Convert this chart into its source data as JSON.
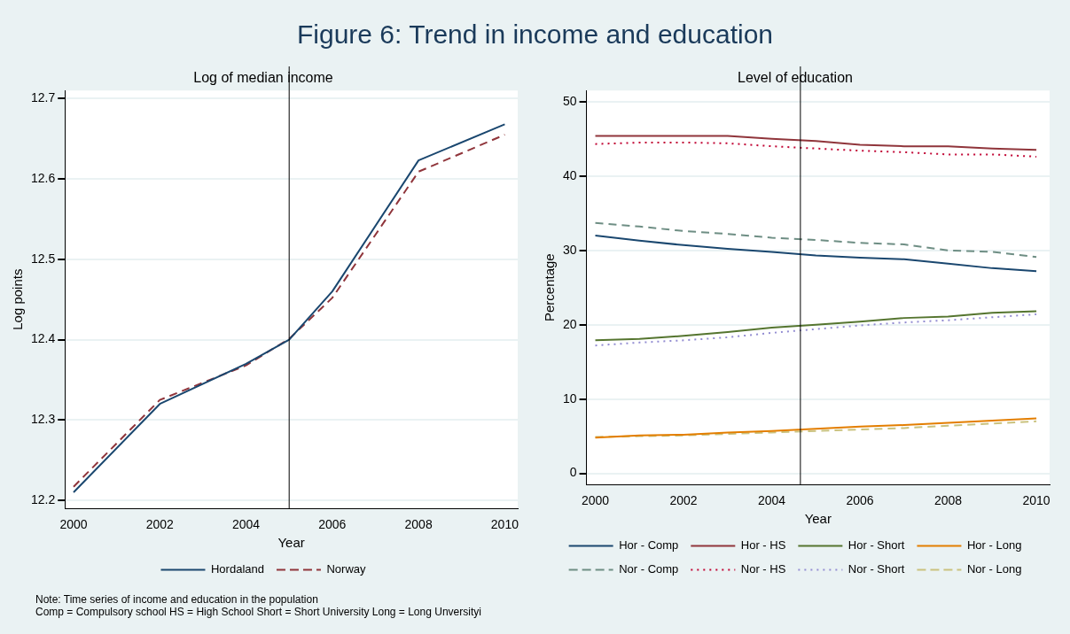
{
  "chart_data": [
    {
      "type": "other",
      "title": "Figure 6: Trend in income and education",
      "annotations": [
        "Note: Time series of income and education in the population",
        "Comp = Compulsory school  HS = High School  Short = Short University  Long = Long Unversityi"
      ]
    },
    {
      "type": "line",
      "title": "Log of median income",
      "xlabel": "Year",
      "ylabel": "Log points",
      "x": [
        2000,
        2002,
        2004,
        2005,
        2006,
        2008,
        2010
      ],
      "xlim": [
        1999.8,
        2010.3
      ],
      "xticks": [
        2000,
        2002,
        2004,
        2006,
        2008,
        2010
      ],
      "ylim": [
        12.19,
        12.71
      ],
      "yticks": [
        12.2,
        12.3,
        12.4,
        12.5,
        12.6,
        12.7
      ],
      "grid": "y",
      "legend": "bottom",
      "ref_lines": [
        {
          "axis": "x",
          "value": 2005,
          "color": "#000000"
        }
      ],
      "series": [
        {
          "name": "Hordaland",
          "color": "#1a476f",
          "line_style": "solid",
          "values": [
            12.21,
            12.32,
            12.37,
            12.4,
            12.46,
            12.623,
            12.668
          ]
        },
        {
          "name": "Norway",
          "color": "#90353b",
          "line_style": "dashed",
          "values": [
            12.217,
            12.325,
            12.368,
            12.401,
            12.452,
            12.609,
            12.655
          ]
        }
      ]
    },
    {
      "type": "line",
      "title": "Level of education",
      "xlabel": "Year",
      "ylabel": "Percentage",
      "x": [
        2000,
        2001,
        2002,
        2003,
        2004,
        2005,
        2006,
        2007,
        2008,
        2009,
        2010
      ],
      "xlim": [
        1999.8,
        2010.3
      ],
      "xticks": [
        2000,
        2002,
        2004,
        2006,
        2008,
        2010
      ],
      "ylim": [
        -1.5,
        51.5
      ],
      "yticks": [
        0,
        10,
        20,
        30,
        40,
        50
      ],
      "grid": "y",
      "legend": "bottom",
      "ref_lines": [
        {
          "axis": "x",
          "value": 2004.65,
          "color": "#000000"
        }
      ],
      "series": [
        {
          "name": "Hor - Comp",
          "color": "#1a476f",
          "line_style": "solid",
          "values": [
            32.0,
            31.3,
            30.7,
            30.2,
            29.8,
            29.3,
            29.0,
            28.8,
            28.2,
            27.6,
            27.2
          ]
        },
        {
          "name": "Hor - HS",
          "color": "#90353b",
          "line_style": "solid",
          "values": [
            45.4,
            45.4,
            45.4,
            45.4,
            45.0,
            44.7,
            44.2,
            44.0,
            44.0,
            43.7,
            43.5
          ]
        },
        {
          "name": "Hor - Short",
          "color": "#55752f",
          "line_style": "solid",
          "values": [
            17.9,
            18.1,
            18.5,
            19.0,
            19.6,
            20.0,
            20.4,
            20.9,
            21.1,
            21.6,
            21.8
          ]
        },
        {
          "name": "Hor - Long",
          "color": "#e37e00",
          "line_style": "solid",
          "values": [
            4.8,
            5.1,
            5.2,
            5.5,
            5.7,
            6.0,
            6.3,
            6.5,
            6.8,
            7.1,
            7.4
          ]
        },
        {
          "name": "Nor - Comp",
          "color": "#6e8e84",
          "line_style": "dashed",
          "values": [
            33.7,
            33.2,
            32.6,
            32.2,
            31.7,
            31.4,
            31.0,
            30.8,
            30.0,
            29.8,
            29.1
          ]
        },
        {
          "name": "Nor - HS",
          "color": "#c10534",
          "line_style": "dotted",
          "values": [
            44.3,
            44.5,
            44.5,
            44.4,
            44.0,
            43.7,
            43.4,
            43.2,
            42.9,
            42.9,
            42.6
          ]
        },
        {
          "name": "Nor - Short",
          "color": "#938dd2",
          "line_style": "dotted",
          "values": [
            17.2,
            17.6,
            17.9,
            18.3,
            18.9,
            19.4,
            19.9,
            20.3,
            20.6,
            21.0,
            21.4
          ]
        },
        {
          "name": "Nor - Long",
          "color": "#cac27e",
          "line_style": "dashed",
          "values": [
            4.9,
            5.0,
            5.1,
            5.3,
            5.5,
            5.7,
            5.9,
            6.1,
            6.4,
            6.7,
            7.0
          ]
        }
      ]
    }
  ]
}
